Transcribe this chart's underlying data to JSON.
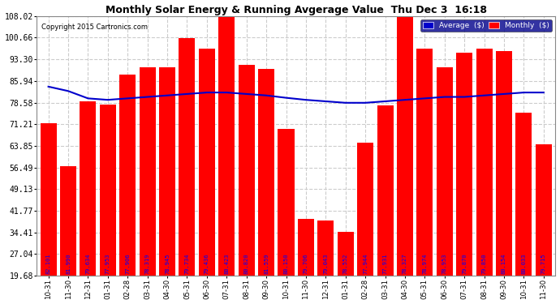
{
  "title": "Monthly Solar Energy & Running Avgerage Value  Thu Dec 3  16:18",
  "copyright": "Copyright 2015 Cartronics.com",
  "categories": [
    "10-31",
    "11-30",
    "12-31",
    "01-31",
    "02-28",
    "03-31",
    "04-30",
    "05-31",
    "06-30",
    "07-31",
    "08-31",
    "09-30",
    "10-31",
    "11-30",
    "12-31",
    "01-31",
    "02-28",
    "03-31",
    "04-30",
    "05-31",
    "06-30",
    "07-31",
    "08-31",
    "09-30",
    "10-31",
    "11-30"
  ],
  "monthly_values": [
    71.5,
    57.0,
    79.0,
    78.0,
    88.0,
    90.5,
    90.5,
    100.5,
    97.0,
    108.02,
    91.5,
    90.0,
    69.5,
    39.0,
    38.5,
    34.5,
    65.0,
    77.5,
    108.02,
    97.0,
    90.5,
    95.5,
    97.0,
    96.0,
    75.0,
    64.5
  ],
  "avg_values": [
    84.0,
    82.5,
    80.0,
    79.5,
    80.0,
    80.5,
    81.0,
    81.5,
    82.0,
    82.0,
    81.5,
    81.0,
    80.2,
    79.5,
    79.0,
    78.5,
    78.5,
    79.0,
    79.5,
    80.0,
    80.5,
    80.5,
    81.0,
    81.5,
    82.0,
    82.0
  ],
  "bar_labels": [
    "82.101",
    "81.990",
    "79.634",
    "77.953",
    "77.906",
    "78.319",
    "78.945",
    "79.734",
    "79.436",
    "80.423",
    "80.820",
    "81.559",
    "80.150",
    "79.706",
    "79.043",
    "78.552",
    "77.944",
    "77.931",
    "78.327",
    "78.974",
    "78.953",
    "79.870",
    "79.850",
    "80.154",
    "80.033",
    "79.715"
  ],
  "bar_color": "#FF0000",
  "avg_line_color": "#0000CC",
  "background_color": "#FFFFFF",
  "grid_color": "#CCCCCC",
  "yticks": [
    19.68,
    27.04,
    34.41,
    41.77,
    49.13,
    56.49,
    63.85,
    71.21,
    78.58,
    85.94,
    93.3,
    100.66,
    108.02
  ],
  "ymin": 19.68,
  "ymax": 108.02,
  "value_text_color": "#0000FF",
  "legend_bg_color": "#00008B",
  "legend_avg_color": "#0000CC",
  "legend_monthly_color": "#FF0000"
}
